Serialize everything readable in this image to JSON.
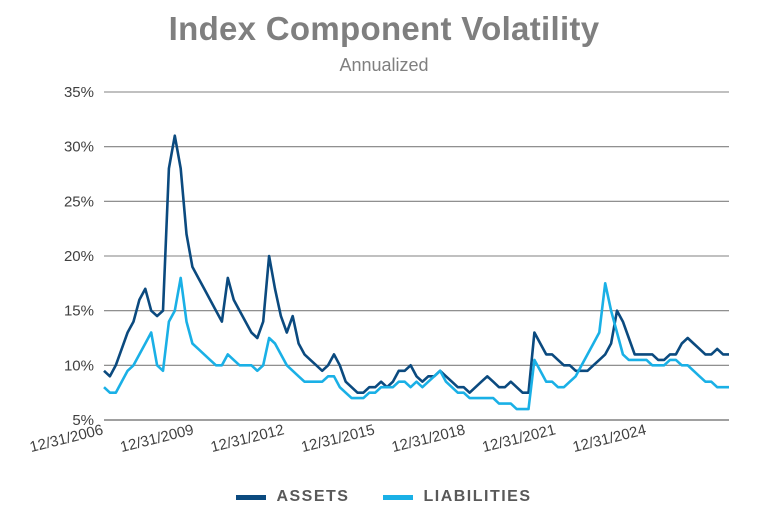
{
  "colors": {
    "assets": "#0b4a7f",
    "liabilities": "#1ab0e6",
    "grid": "#808080",
    "text": "#404040",
    "title": "#7f7f7f"
  },
  "chart_data": {
    "type": "line",
    "title": "Index Component Volatility",
    "subtitle": "Annualized",
    "xlabel": "",
    "ylabel": "",
    "ylim": [
      5,
      35
    ],
    "yticks": [
      "5%",
      "10%",
      "15%",
      "20%",
      "25%",
      "30%",
      "35%"
    ],
    "xticks": [
      "12/31/2006",
      "12/31/2009",
      "12/31/2012",
      "12/31/2015",
      "12/31/2018",
      "12/31/2021",
      "12/31/2024"
    ],
    "grid": true,
    "legend_position": "bottom",
    "x_start": "2006-12",
    "x_step": "quarter",
    "series": [
      {
        "name": "ASSETS",
        "color": "#0b4a7f",
        "values": [
          9.5,
          9.0,
          10.0,
          11.5,
          13.0,
          14.0,
          16.0,
          17.0,
          15.0,
          14.5,
          15.0,
          28.0,
          31.0,
          28.0,
          22.0,
          19.0,
          18.0,
          17.0,
          16.0,
          15.0,
          14.0,
          18.0,
          16.0,
          15.0,
          14.0,
          13.0,
          12.5,
          14.0,
          20.0,
          17.0,
          14.5,
          13.0,
          14.5,
          12.0,
          11.0,
          10.5,
          10.0,
          9.5,
          10.0,
          11.0,
          10.0,
          8.5,
          8.0,
          7.5,
          7.5,
          8.0,
          8.0,
          8.5,
          8.0,
          8.5,
          9.5,
          9.5,
          10.0,
          9.0,
          8.5,
          9.0,
          9.0,
          9.5,
          9.0,
          8.5,
          8.0,
          8.0,
          7.5,
          8.0,
          8.5,
          9.0,
          8.5,
          8.0,
          8.0,
          8.5,
          8.0,
          7.5,
          7.5,
          13.0,
          12.0,
          11.0,
          11.0,
          10.5,
          10.0,
          10.0,
          9.5,
          9.5,
          9.5,
          10.0,
          10.5,
          11.0,
          12.0,
          15.0,
          14.0,
          12.5,
          11.0,
          11.0,
          11.0,
          11.0,
          10.5,
          10.5,
          11.0,
          11.0,
          12.0,
          12.5,
          12.0,
          11.5,
          11.0,
          11.0,
          11.5,
          11.0,
          11.0
        ]
      },
      {
        "name": "LIABILITIES",
        "color": "#1ab0e6",
        "values": [
          8.0,
          7.5,
          7.5,
          8.5,
          9.5,
          10.0,
          11.0,
          12.0,
          13.0,
          10.0,
          9.5,
          14.0,
          15.0,
          18.0,
          14.0,
          12.0,
          11.5,
          11.0,
          10.5,
          10.0,
          10.0,
          11.0,
          10.5,
          10.0,
          10.0,
          10.0,
          9.5,
          10.0,
          12.5,
          12.0,
          11.0,
          10.0,
          9.5,
          9.0,
          8.5,
          8.5,
          8.5,
          8.5,
          9.0,
          9.0,
          8.0,
          7.5,
          7.0,
          7.0,
          7.0,
          7.5,
          7.5,
          8.0,
          8.0,
          8.0,
          8.5,
          8.5,
          8.0,
          8.5,
          8.0,
          8.5,
          9.0,
          9.5,
          8.5,
          8.0,
          7.5,
          7.5,
          7.0,
          7.0,
          7.0,
          7.0,
          7.0,
          6.5,
          6.5,
          6.5,
          6.0,
          6.0,
          6.0,
          10.5,
          9.5,
          8.5,
          8.5,
          8.0,
          8.0,
          8.5,
          9.0,
          10.0,
          11.0,
          12.0,
          13.0,
          17.5,
          15.0,
          13.0,
          11.0,
          10.5,
          10.5,
          10.5,
          10.5,
          10.0,
          10.0,
          10.0,
          10.5,
          10.5,
          10.0,
          10.0,
          9.5,
          9.0,
          8.5,
          8.5,
          8.0,
          8.0,
          8.0
        ]
      }
    ]
  }
}
